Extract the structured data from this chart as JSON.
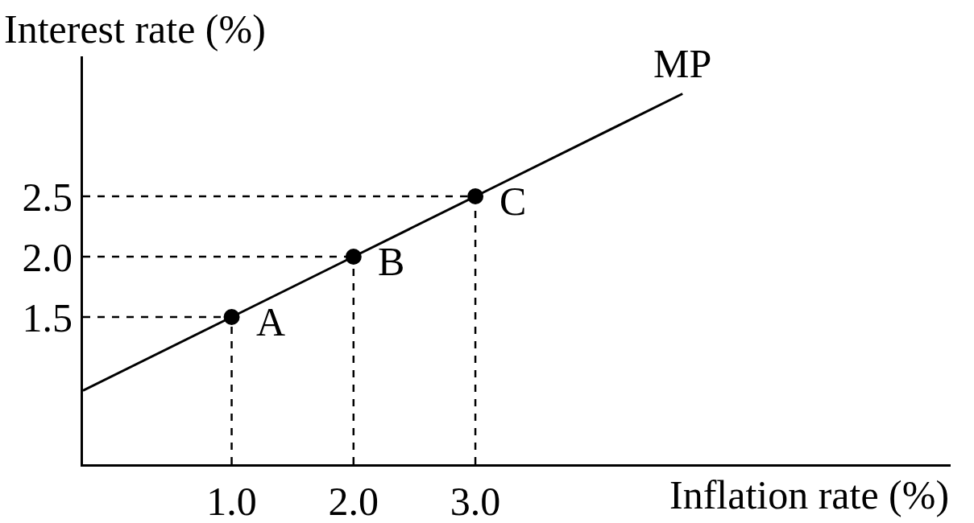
{
  "chart_data": {
    "type": "line",
    "xlabel": "Inflation rate (%)",
    "ylabel": "Interest rate (%)",
    "xlim": [
      -0.22,
      6.9
    ],
    "ylim": [
      0.28,
      3.66
    ],
    "xticks": [
      {
        "value": 1,
        "label": "1.0"
      },
      {
        "value": 2,
        "label": "2.0"
      },
      {
        "value": 3,
        "label": "3.0"
      }
    ],
    "yticks": [
      {
        "value": 1.5,
        "label": "1.5"
      },
      {
        "value": 2,
        "label": "2.0"
      },
      {
        "value": 2.5,
        "label": "2.5"
      }
    ],
    "grid": false,
    "legend": false,
    "marker": "none",
    "line_style": "solid",
    "series": [
      {
        "name": "MP",
        "color": "#000000",
        "x": [
          -0.22,
          1,
          2,
          3,
          4.7
        ],
        "values": [
          0.89,
          1.5,
          2,
          2.5,
          3.35
        ]
      },
      {
        "type": "scatter",
        "color": "#000000",
        "marker": "circle",
        "x": [
          1,
          2,
          3
        ],
        "values": [
          1.5,
          2,
          2.5
        ]
      }
    ],
    "annotations": [
      {
        "text": "A",
        "x": 1,
        "y": 1.5
      },
      {
        "text": "B",
        "x": 2,
        "y": 2
      },
      {
        "text": "C",
        "x": 3,
        "y": 2.5
      }
    ]
  }
}
